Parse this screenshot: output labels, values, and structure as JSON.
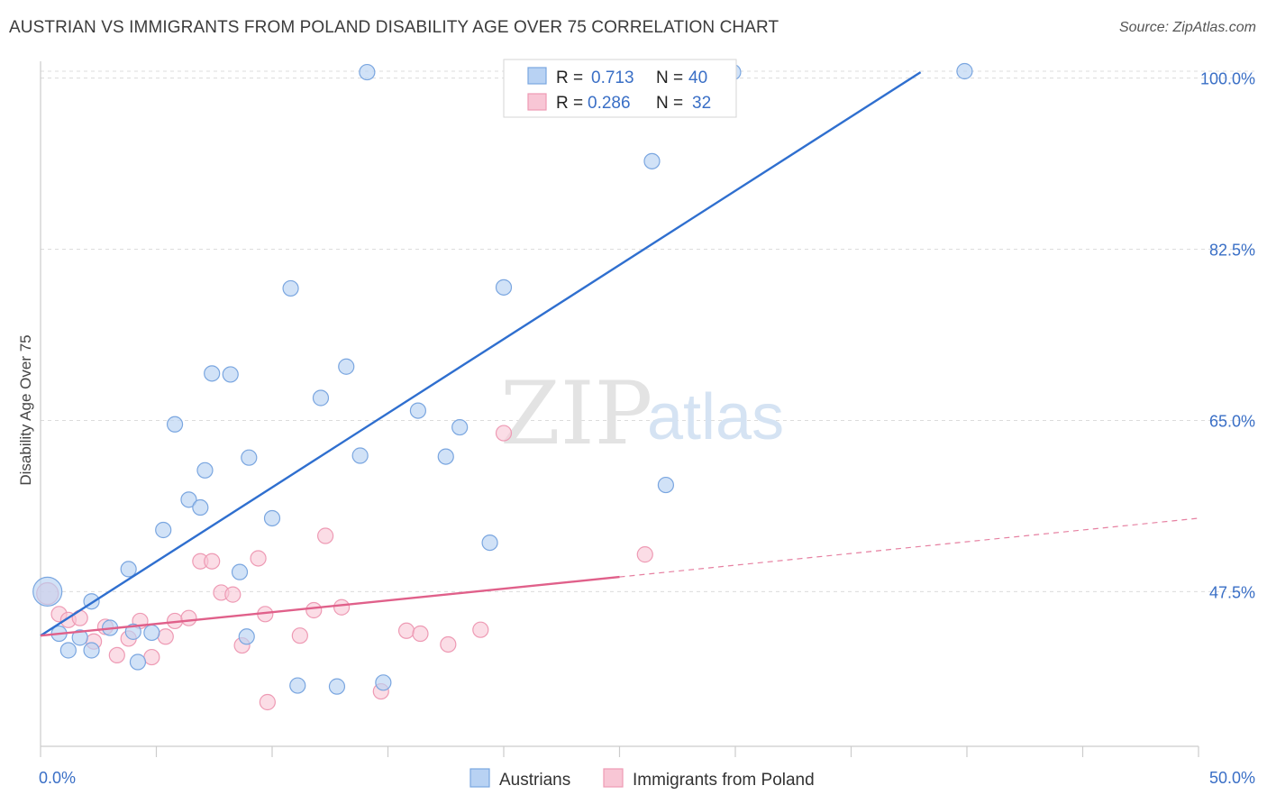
{
  "header": {
    "title": "AUSTRIAN VS IMMIGRANTS FROM POLAND DISABILITY AGE OVER 75 CORRELATION CHART",
    "source": "Source: ZipAtlas.com"
  },
  "watermark": {
    "zip": "ZIP",
    "atlas": "atlas"
  },
  "colors": {
    "blue_fill": "#b8d2f3",
    "blue_stroke": "#7aa6e0",
    "blue_line": "#2f6fcf",
    "pink_fill": "#f8c6d5",
    "pink_stroke": "#ee9ab4",
    "pink_line": "#e0608a",
    "grid": "#dcdcdc",
    "tick_text": "#3a6fc6"
  },
  "legend_top": {
    "rows": [
      {
        "r_label": "R = ",
        "r_value": "0.713",
        "n_label": "N = ",
        "n_value": "40"
      },
      {
        "r_label": "R = ",
        "r_value": "0.286",
        "n_label": "N = ",
        "n_value": "32"
      }
    ]
  },
  "chart_data": {
    "type": "scatter",
    "title": "AUSTRIAN VS IMMIGRANTS FROM POLAND DISABILITY AGE OVER 75 CORRELATION CHART",
    "xlabel": "",
    "ylabel": "Disability Age Over 75",
    "xlim": [
      0,
      50
    ],
    "ylim": [
      31,
      102
    ],
    "x_tick_labels": [
      {
        "value": 0,
        "label": "0.0%"
      },
      {
        "value": 50,
        "label": "50.0%"
      }
    ],
    "y_tick_labels": [
      {
        "value": 47.5,
        "label": "47.5%"
      },
      {
        "value": 65.0,
        "label": "65.0%"
      },
      {
        "value": 82.5,
        "label": "82.5%"
      },
      {
        "value": 100.0,
        "label": "100.0%"
      }
    ],
    "grid": true,
    "legend_position": "bottom",
    "series": [
      {
        "name": "Austrians",
        "points": [
          [
            0.3,
            47.5
          ],
          [
            0.8,
            43.2
          ],
          [
            1.2,
            41.5
          ],
          [
            1.7,
            42.8
          ],
          [
            2.2,
            46.5
          ],
          [
            2.2,
            41.5
          ],
          [
            3.8,
            49.8
          ],
          [
            4.2,
            40.3
          ],
          [
            4.8,
            43.3
          ],
          [
            5.3,
            53.8
          ],
          [
            5.8,
            64.6
          ],
          [
            6.4,
            56.9
          ],
          [
            6.9,
            56.1
          ],
          [
            7.1,
            59.9
          ],
          [
            7.4,
            69.8
          ],
          [
            8.2,
            69.7
          ],
          [
            8.6,
            49.5
          ],
          [
            8.9,
            42.9
          ],
          [
            9.0,
            61.2
          ],
          [
            10.0,
            55.0
          ],
          [
            10.8,
            78.5
          ],
          [
            11.1,
            37.9
          ],
          [
            12.1,
            67.3
          ],
          [
            12.8,
            37.8
          ],
          [
            13.2,
            70.5
          ],
          [
            13.8,
            61.4
          ],
          [
            14.1,
            100.6
          ],
          [
            14.8,
            38.2
          ],
          [
            16.3,
            66.0
          ],
          [
            17.5,
            61.3
          ],
          [
            18.1,
            64.3
          ],
          [
            19.4,
            52.5
          ],
          [
            20.0,
            78.6
          ],
          [
            22.6,
            99.8
          ],
          [
            26.4,
            91.5
          ],
          [
            27.0,
            58.4
          ],
          [
            29.9,
            100.6
          ],
          [
            39.9,
            100.7
          ],
          [
            3.0,
            43.8
          ],
          [
            4.0,
            43.4
          ]
        ],
        "r": 0.713,
        "n": 40,
        "trend": {
          "x": [
            0,
            38
          ],
          "y": [
            43.0,
            100.6
          ]
        }
      },
      {
        "name": "Immigrants from Poland",
        "points": [
          [
            0.3,
            47.3
          ],
          [
            0.8,
            45.2
          ],
          [
            1.2,
            44.6
          ],
          [
            1.7,
            44.8
          ],
          [
            2.3,
            42.4
          ],
          [
            2.8,
            43.9
          ],
          [
            3.3,
            41.0
          ],
          [
            3.8,
            42.7
          ],
          [
            4.3,
            44.5
          ],
          [
            4.8,
            40.8
          ],
          [
            5.4,
            42.9
          ],
          [
            5.8,
            44.5
          ],
          [
            6.4,
            44.8
          ],
          [
            6.9,
            50.6
          ],
          [
            7.4,
            50.6
          ],
          [
            7.8,
            47.4
          ],
          [
            8.3,
            47.2
          ],
          [
            8.7,
            42.0
          ],
          [
            9.4,
            50.9
          ],
          [
            9.7,
            45.2
          ],
          [
            9.8,
            36.2
          ],
          [
            11.2,
            43.0
          ],
          [
            11.8,
            45.6
          ],
          [
            12.3,
            53.2
          ],
          [
            13.0,
            45.9
          ],
          [
            14.7,
            37.3
          ],
          [
            15.8,
            43.5
          ],
          [
            16.4,
            43.2
          ],
          [
            17.6,
            42.1
          ],
          [
            19.0,
            43.6
          ],
          [
            20.0,
            63.7
          ],
          [
            26.1,
            51.3
          ]
        ],
        "r": 0.286,
        "n": 32,
        "trend": {
          "x": [
            0,
            25
          ],
          "y": [
            43.0,
            49.0
          ]
        },
        "trend_extension": {
          "x": [
            25,
            50
          ],
          "y": [
            49.0,
            55.0
          ]
        }
      }
    ]
  }
}
